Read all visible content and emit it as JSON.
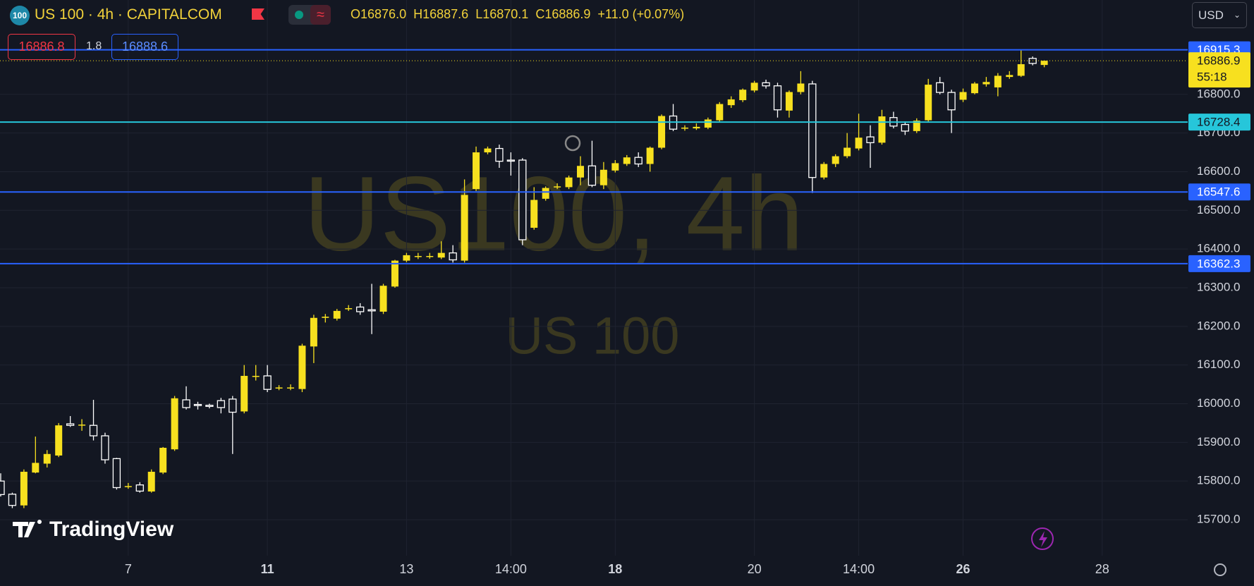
{
  "header": {
    "badge": "100",
    "symbol": "US 100 · 4h · CAPITALCOM",
    "ohlc": [
      {
        "key": "O",
        "value": "16876.0"
      },
      {
        "key": "H",
        "value": "16887.6"
      },
      {
        "key": "L",
        "value": "16870.1"
      },
      {
        "key": "C",
        "value": "16886.9"
      }
    ],
    "change": "+11.0 (+0.07%)",
    "currency": "USD",
    "bid": "16886.8",
    "spread": "1.8",
    "ask": "16888.6"
  },
  "watermark": {
    "title": "US100, 4h",
    "subtitle": "US 100"
  },
  "logo": "TradingView",
  "chart_data": {
    "type": "candlestick",
    "categories": [
      null,
      null,
      null,
      null,
      null,
      null,
      null,
      null,
      null,
      null,
      null,
      "7",
      null,
      null,
      null,
      null,
      null,
      null,
      null,
      null,
      null,
      null,
      null,
      "11",
      null,
      null,
      null,
      null,
      null,
      null,
      null,
      null,
      null,
      null,
      null,
      "13",
      null,
      null,
      null,
      null,
      null,
      null,
      null,
      null,
      "14:00",
      null,
      null,
      null,
      null,
      null,
      null,
      null,
      null,
      "18",
      null,
      null,
      null,
      null,
      null,
      null,
      null,
      null,
      null,
      null,
      null,
      "20",
      null,
      null,
      null,
      null,
      null,
      null,
      null,
      null,
      "14:00",
      null,
      null,
      null,
      null,
      null,
      null,
      null,
      null,
      "26",
      null,
      null,
      null,
      null,
      null,
      null,
      null,
      null,
      null,
      null,
      null,
      "28",
      null,
      null,
      null,
      null,
      null,
      null
    ],
    "open": [
      15800,
      15766,
      15737,
      15822,
      15845,
      15866,
      15948,
      15944,
      15944,
      15917,
      15858,
      15785,
      15790,
      15773,
      15822,
      15882,
      16010,
      15998,
      15996,
      16008,
      16012,
      15980,
      16070,
      16072,
      16040,
      16040,
      16038,
      16148,
      16222,
      16220,
      16245,
      16250,
      16243,
      16238,
      16303,
      16370,
      16380,
      16380,
      16378,
      16390,
      16370,
      16555,
      16650,
      16660,
      16630,
      16630,
      16455,
      16530,
      16560,
      16560,
      16585,
      16615,
      16565,
      16603,
      16620,
      16637,
      16620,
      16662,
      16744,
      16712,
      16712,
      16714,
      16733,
      16772,
      16785,
      16810,
      16830,
      16822,
      16758,
      16806,
      16827,
      16585,
      16620,
      16640,
      16660,
      16690,
      16675,
      16740,
      16722,
      16705,
      16733,
      16830,
      16805,
      16786,
      16803,
      16826,
      16818,
      16845,
      16848,
      16893,
      16876,
      null,
      null,
      null,
      null,
      null,
      null,
      null,
      null,
      null,
      null,
      null
    ],
    "high": [
      15820,
      15770,
      15830,
      15915,
      15880,
      15950,
      15968,
      15960,
      16010,
      15925,
      15860,
      15795,
      15797,
      15830,
      15888,
      16020,
      16045,
      16005,
      16000,
      16015,
      16020,
      16100,
      16100,
      16100,
      16048,
      16050,
      16155,
      16230,
      16232,
      16245,
      16255,
      16260,
      16310,
      16310,
      16372,
      16390,
      16390,
      16390,
      16420,
      16410,
      16580,
      16665,
      16665,
      16670,
      16650,
      16635,
      16560,
      16562,
      16570,
      16590,
      16640,
      16680,
      16625,
      16630,
      16643,
      16650,
      16665,
      16748,
      16775,
      16720,
      16725,
      16740,
      16780,
      16795,
      16815,
      16835,
      16838,
      16830,
      16810,
      16860,
      16835,
      16625,
      16645,
      16700,
      16750,
      16720,
      16760,
      16755,
      16730,
      16738,
      16840,
      16845,
      16812,
      16815,
      16832,
      16845,
      16855,
      16860,
      16915,
      16898,
      16887.6,
      null,
      null,
      null,
      null,
      null,
      null,
      null,
      null,
      null,
      null,
      null
    ],
    "low": [
      15760,
      15730,
      15730,
      15820,
      15835,
      15862,
      15940,
      15930,
      15905,
      15845,
      15778,
      15780,
      15770,
      15770,
      15818,
      15878,
      15985,
      15985,
      15988,
      15975,
      15870,
      15975,
      16060,
      16030,
      16035,
      16035,
      16030,
      16105,
      16210,
      16215,
      16240,
      16230,
      16180,
      16232,
      16300,
      16366,
      16374,
      16375,
      16374,
      16365,
      16365,
      16550,
      16645,
      16610,
      16590,
      16410,
      16450,
      16525,
      16555,
      16555,
      16565,
      16560,
      16555,
      16598,
      16615,
      16612,
      16600,
      16658,
      16705,
      16706,
      16708,
      16710,
      16728,
      16765,
      16780,
      16805,
      16815,
      16740,
      16740,
      16800,
      16545,
      16580,
      16612,
      16635,
      16655,
      16610,
      16670,
      16712,
      16695,
      16700,
      16728,
      16800,
      16700,
      16780,
      16800,
      16820,
      16795,
      16840,
      16845,
      16875,
      16870.1,
      null,
      null,
      null,
      null,
      null,
      null,
      null,
      null,
      null,
      null,
      null
    ],
    "close": [
      15765,
      15737,
      15824,
      15847,
      15870,
      15944,
      15944,
      15946,
      15917,
      15855,
      15783,
      15787,
      15774,
      15824,
      15886,
      16014,
      15990,
      15997,
      15993,
      15990,
      15978,
      16072,
      16072,
      16037,
      16042,
      16042,
      16150,
      16222,
      16225,
      16240,
      16247,
      16238,
      16240,
      16305,
      16370,
      16384,
      16382,
      16382,
      16390,
      16372,
      16540,
      16650,
      16660,
      16627,
      16628,
      16424,
      16527,
      16558,
      16562,
      16585,
      16615,
      16565,
      16605,
      16622,
      16637,
      16620,
      16662,
      16744,
      16710,
      16714,
      16716,
      16735,
      16775,
      16787,
      16812,
      16830,
      16822,
      16760,
      16806,
      16828,
      16585,
      16620,
      16640,
      16662,
      16688,
      16675,
      16743,
      16718,
      16705,
      16732,
      16825,
      16805,
      16760,
      16806,
      16828,
      16832,
      16848,
      16850,
      16878,
      16880,
      16886.9,
      null,
      null,
      null,
      null,
      null,
      null,
      null,
      null,
      null,
      null,
      null
    ],
    "up_color": "#f7e01f",
    "down_color": "#ffffff",
    "ylim": [
      15607,
      17044
    ],
    "yticks": [
      {
        "value": 15700,
        "label": "15700.0"
      },
      {
        "value": 15800,
        "label": "15800.0"
      },
      {
        "value": 15900,
        "label": "15900.0"
      },
      {
        "value": 16000,
        "label": "16000.0"
      },
      {
        "value": 16100,
        "label": "16100.0"
      },
      {
        "value": 16200,
        "label": "16200.0"
      },
      {
        "value": 16300,
        "label": "16300.0"
      },
      {
        "value": 16400,
        "label": "16400.0"
      },
      {
        "value": 16500,
        "label": "16500.0"
      },
      {
        "value": 16600,
        "label": "16600.0"
      },
      {
        "value": 16700,
        "label": "16700.0"
      },
      {
        "value": 16800,
        "label": "16800.0"
      }
    ],
    "grid": true,
    "bold_category_indices": [
      23,
      53,
      83
    ],
    "price_lines": [
      {
        "value": 16915.3,
        "color": "#2962ff",
        "text_color": "#ffffff"
      },
      {
        "value": 16728.4,
        "color": "#26c6da",
        "text_color": "#131722"
      },
      {
        "value": 16547.6,
        "color": "#2962ff",
        "text_color": "#ffffff"
      },
      {
        "value": 16362.3,
        "color": "#2962ff",
        "text_color": "#ffffff"
      }
    ],
    "countdown": "55:18"
  }
}
